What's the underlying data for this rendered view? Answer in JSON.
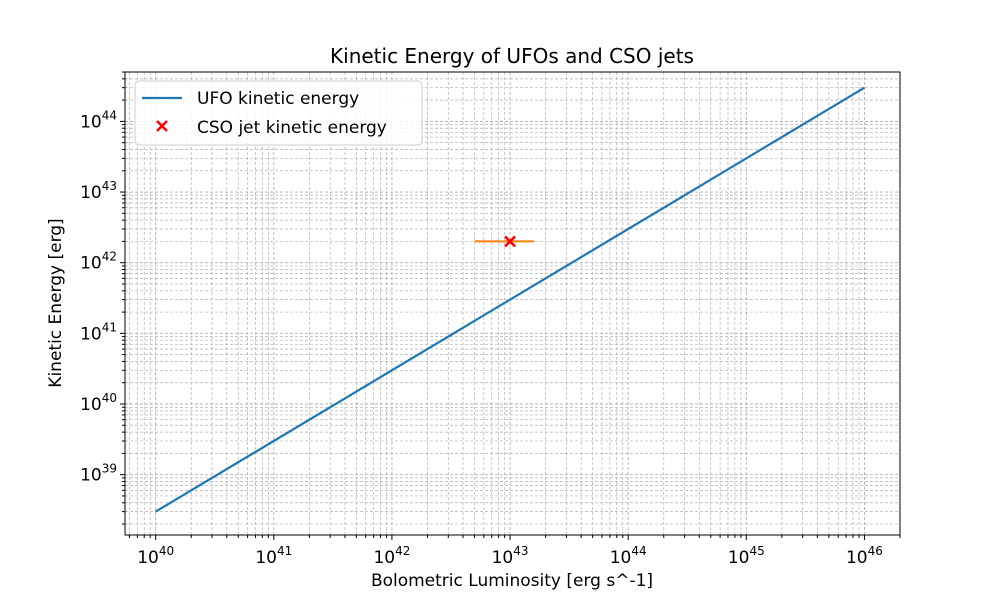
{
  "chart_data": {
    "type": "line",
    "title": "Kinetic Energy of UFOs and CSO jets",
    "xlabel": "Bolometric Luminosity [erg s^-1]",
    "ylabel": "Kinetic Energy [erg]",
    "xscale": "log",
    "yscale": "log",
    "xlim": [
      5.5e+39,
      2e+46
    ],
    "ylim": [
      1.4e+38,
      5e+44
    ],
    "grid": true,
    "grid_which": "both",
    "legend_position": "upper-left",
    "x_tick_labels": [
      "10^40",
      "10^41",
      "10^42",
      "10^43",
      "10^44",
      "10^45",
      "10^46"
    ],
    "y_tick_labels": [
      "10^39",
      "10^40",
      "10^41",
      "10^42",
      "10^43",
      "10^44"
    ],
    "series": [
      {
        "name": "UFO kinetic energy",
        "kind": "line",
        "color": "#1f77b4",
        "x": [
          1e+40,
          1e+46
        ],
        "y": [
          3e+38,
          3e+44
        ]
      },
      {
        "name": "CSO jet kinetic energy",
        "kind": "scatter",
        "marker": "x",
        "color": "#ff0000",
        "x": [
          1e+43
        ],
        "y": [
          2e+42
        ],
        "xerr_range": [
          [
            5e+42,
            1.6e+43
          ]
        ],
        "errorbar_color": "#ff7f0e"
      }
    ]
  }
}
